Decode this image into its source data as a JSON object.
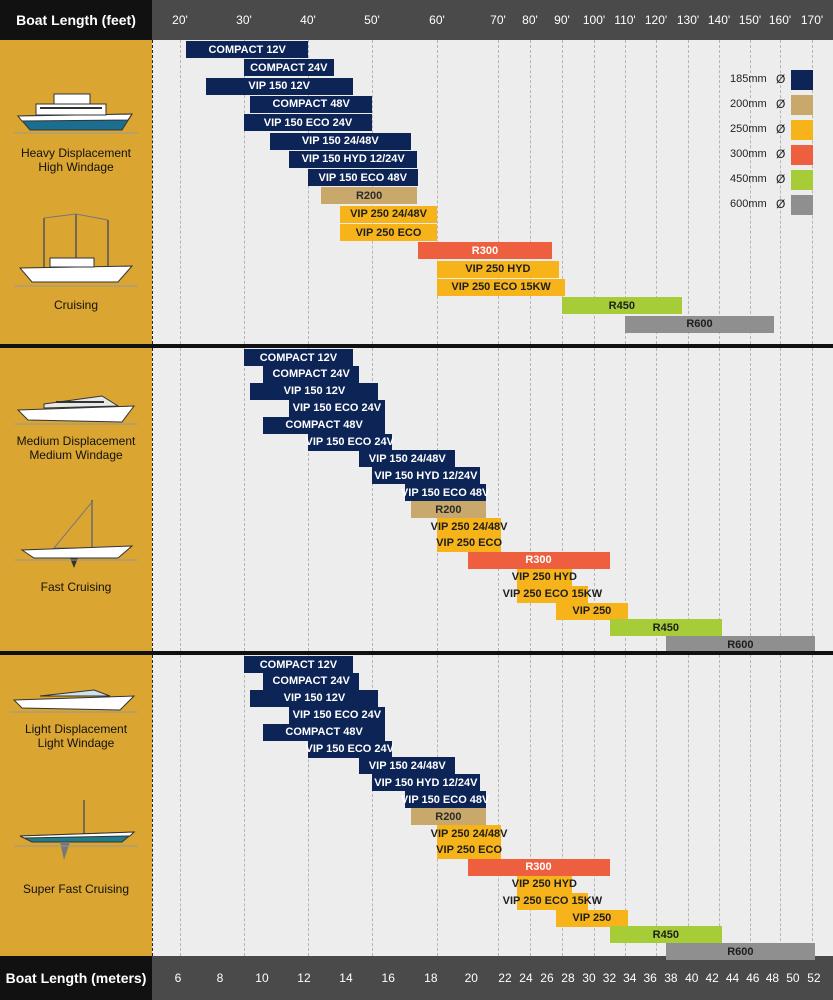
{
  "header": {
    "feet_label": "Boat Length (feet)",
    "meters_label": "Boat Length (meters)"
  },
  "chart_data": {
    "type": "gantt-range",
    "title": "",
    "x_top_label": "Boat Length (feet)",
    "x_bottom_label": "Boat Length (meters)",
    "feet_ticks": [
      "20'",
      "30'",
      "40'",
      "50'",
      "60'",
      "70'",
      "80'",
      "90'",
      "100'",
      "110'",
      "120'",
      "130'",
      "140'",
      "150'",
      "160'",
      "170'"
    ],
    "meter_ticks": [
      "6",
      "8",
      "10",
      "12",
      "14",
      "16",
      "18",
      "20",
      "22",
      "24",
      "26",
      "28",
      "30",
      "32",
      "34",
      "36",
      "38",
      "40",
      "42",
      "44",
      "46",
      "48",
      "50",
      "52"
    ],
    "legend": [
      {
        "label": "185mm",
        "symbol": "Ø",
        "color": "#0d2456"
      },
      {
        "label": "200mm",
        "symbol": "Ø",
        "color": "#c9a86b"
      },
      {
        "label": "250mm",
        "symbol": "Ø",
        "color": "#f7b41a"
      },
      {
        "label": "300mm",
        "symbol": "Ø",
        "color": "#ee5f3f"
      },
      {
        "label": "450mm",
        "symbol": "Ø",
        "color": "#a6cd37"
      },
      {
        "label": "600mm",
        "symbol": "Ø",
        "color": "#8f8f8f"
      }
    ],
    "groups": [
      {
        "categories": [
          "Heavy Displacement High Windage",
          "Cruising"
        ],
        "bars": [
          {
            "label": "COMPACT 12V",
            "start_ft": 21,
            "end_ft": 40,
            "size": "185mm"
          },
          {
            "label": "COMPACT 24V",
            "start_ft": 30,
            "end_ft": 44,
            "size": "185mm"
          },
          {
            "label": "VIP 150 12V",
            "start_ft": 24,
            "end_ft": 47,
            "size": "185mm"
          },
          {
            "label": "COMPACT 48V",
            "start_ft": 31,
            "end_ft": 50,
            "size": "185mm"
          },
          {
            "label": "VIP 150 ECO 24V",
            "start_ft": 30,
            "end_ft": 50,
            "size": "185mm"
          },
          {
            "label": "VIP 150 24/48V",
            "start_ft": 34,
            "end_ft": 56,
            "size": "185mm"
          },
          {
            "label": "VIP 150 HYD 12/24V",
            "start_ft": 37,
            "end_ft": 57,
            "size": "185mm"
          },
          {
            "label": "VIP 150 ECO 48V",
            "start_ft": 40,
            "end_ft": 57,
            "size": "185mm"
          },
          {
            "label": "R200",
            "start_ft": 42,
            "end_ft": 57,
            "size": "200mm"
          },
          {
            "label": "VIP 250 24/48V",
            "start_ft": 45,
            "end_ft": 60,
            "size": "250mm"
          },
          {
            "label": "VIP 250 ECO",
            "start_ft": 45,
            "end_ft": 60,
            "size": "250mm"
          },
          {
            "label": "R300",
            "start_ft": 57,
            "end_ft": 87,
            "size": "300mm"
          },
          {
            "label": "VIP 250 HYD",
            "start_ft": 60,
            "end_ft": 89,
            "size": "250mm"
          },
          {
            "label": "VIP 250 ECO 15KW",
            "start_ft": 60,
            "end_ft": 91,
            "size": "250mm"
          },
          {
            "label": "R450",
            "start_ft": 90,
            "end_ft": 128,
            "size": "450mm"
          },
          {
            "label": "R600",
            "start_ft": 110,
            "end_ft": 158,
            "size": "600mm"
          }
        ]
      },
      {
        "categories": [
          "Medium Displacement Medium Windage",
          "Fast Cruising"
        ],
        "bars": [
          {
            "label": "COMPACT 12V",
            "start_ft": 30,
            "end_ft": 47,
            "size": "185mm"
          },
          {
            "label": "COMPACT 24V",
            "start_ft": 33,
            "end_ft": 48,
            "size": "185mm"
          },
          {
            "label": "VIP 150 12V",
            "start_ft": 31,
            "end_ft": 51,
            "size": "185mm"
          },
          {
            "label": "VIP 150 ECO 24V",
            "start_ft": 37,
            "end_ft": 52,
            "size": "185mm"
          },
          {
            "label": "COMPACT 48V",
            "start_ft": 33,
            "end_ft": 52,
            "size": "185mm"
          },
          {
            "label": "VIP 150 ECO 24V",
            "start_ft": 40,
            "end_ft": 53,
            "size": "185mm"
          },
          {
            "label": "VIP 150 24/48V",
            "start_ft": 48,
            "end_ft": 63,
            "size": "185mm"
          },
          {
            "label": "VIP 150 HYD 12/24V",
            "start_ft": 50,
            "end_ft": 67,
            "size": "185mm"
          },
          {
            "label": "VIP 150 ECO 48V",
            "start_ft": 55,
            "end_ft": 68,
            "size": "185mm"
          },
          {
            "label": "R200",
            "start_ft": 56,
            "end_ft": 68,
            "size": "200mm"
          },
          {
            "label": "VIP 250 24/48V",
            "start_ft": 60,
            "end_ft": 71,
            "size": "250mm"
          },
          {
            "label": "VIP 250 ECO",
            "start_ft": 60,
            "end_ft": 71,
            "size": "250mm"
          },
          {
            "label": "R300",
            "start_ft": 65,
            "end_ft": 105,
            "size": "300mm"
          },
          {
            "label": "VIP 250 HYD",
            "start_ft": 76,
            "end_ft": 93,
            "size": "250mm"
          },
          {
            "label": "VIP 250 ECO 15KW",
            "start_ft": 76,
            "end_ft": 98,
            "size": "250mm"
          },
          {
            "label": "VIP 250",
            "start_ft": 88,
            "end_ft": 111,
            "size": "250mm"
          },
          {
            "label": "R450",
            "start_ft": 105,
            "end_ft": 141,
            "size": "450mm"
          },
          {
            "label": "R600",
            "start_ft": 123,
            "end_ft": 171,
            "size": "600mm"
          }
        ]
      },
      {
        "categories": [
          "Light Displacement Light Windage",
          "Super Fast Cruising"
        ],
        "bars": [
          {
            "label": "COMPACT 12V",
            "start_ft": 30,
            "end_ft": 47,
            "size": "185mm"
          },
          {
            "label": "COMPACT 24V",
            "start_ft": 33,
            "end_ft": 48,
            "size": "185mm"
          },
          {
            "label": "VIP 150 12V",
            "start_ft": 31,
            "end_ft": 51,
            "size": "185mm"
          },
          {
            "label": "VIP 150 ECO 24V",
            "start_ft": 37,
            "end_ft": 52,
            "size": "185mm"
          },
          {
            "label": "COMPACT 48V",
            "start_ft": 33,
            "end_ft": 52,
            "size": "185mm"
          },
          {
            "label": "VIP 150 ECO 24V",
            "start_ft": 40,
            "end_ft": 53,
            "size": "185mm"
          },
          {
            "label": "VIP 150 24/48V",
            "start_ft": 48,
            "end_ft": 63,
            "size": "185mm"
          },
          {
            "label": "VIP 150 HYD 12/24V",
            "start_ft": 50,
            "end_ft": 67,
            "size": "185mm"
          },
          {
            "label": "VIP 150 ECO 48V",
            "start_ft": 55,
            "end_ft": 68,
            "size": "185mm"
          },
          {
            "label": "R200",
            "start_ft": 56,
            "end_ft": 68,
            "size": "200mm"
          },
          {
            "label": "VIP 250 24/48V",
            "start_ft": 60,
            "end_ft": 71,
            "size": "250mm"
          },
          {
            "label": "VIP 250 ECO",
            "start_ft": 60,
            "end_ft": 71,
            "size": "250mm"
          },
          {
            "label": "R300",
            "start_ft": 65,
            "end_ft": 105,
            "size": "300mm"
          },
          {
            "label": "VIP 250 HYD",
            "start_ft": 76,
            "end_ft": 93,
            "size": "250mm"
          },
          {
            "label": "VIP 250 ECO 15KW",
            "start_ft": 76,
            "end_ft": 98,
            "size": "250mm"
          },
          {
            "label": "VIP 250",
            "start_ft": 88,
            "end_ft": 111,
            "size": "250mm"
          },
          {
            "label": "R450",
            "start_ft": 105,
            "end_ft": 141,
            "size": "450mm"
          },
          {
            "label": "R600",
            "start_ft": 123,
            "end_ft": 171,
            "size": "600mm"
          }
        ]
      }
    ]
  }
}
